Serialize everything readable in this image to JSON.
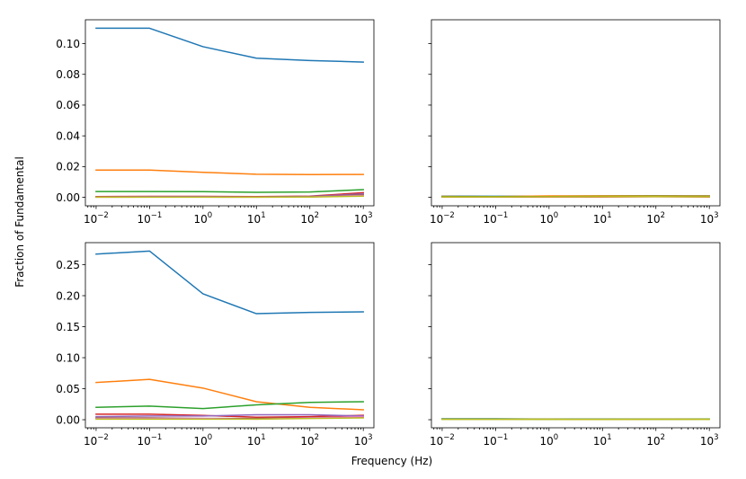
{
  "figure": {
    "xlabel": "Frequency (Hz)",
    "ylabel": "Fraction of Fundamental"
  },
  "chart_data": [
    {
      "type": "line",
      "panel": "top-left",
      "x": [
        0.01,
        0.1,
        1,
        10,
        100,
        1000
      ],
      "x_scale": "log",
      "xlim": [
        0.0063,
        1580
      ],
      "ylim": [
        -0.0055,
        0.1155
      ],
      "yticks": [
        0.0,
        0.02,
        0.04,
        0.06,
        0.08,
        0.1
      ],
      "ytick_labels": [
        "0.00",
        "0.02",
        "0.04",
        "0.06",
        "0.08",
        "0.10"
      ],
      "xtick_labels": [
        "10^-2",
        "10^-1",
        "10^0",
        "10^1",
        "10^2",
        "10^3"
      ],
      "show_yticklabels": true,
      "series": [
        {
          "color": "#1f77b4",
          "values": [
            0.11,
            0.11,
            0.098,
            0.0905,
            0.089,
            0.088
          ]
        },
        {
          "color": "#ff7f0e",
          "values": [
            0.0177,
            0.0177,
            0.0163,
            0.015,
            0.0148,
            0.0149
          ]
        },
        {
          "color": "#2ca02c",
          "values": [
            0.0038,
            0.0038,
            0.0037,
            0.0033,
            0.0035,
            0.005
          ]
        },
        {
          "color": "#d62728",
          "values": [
            0.0005,
            0.0006,
            0.0006,
            0.0005,
            0.0008,
            0.003
          ]
        },
        {
          "color": "#9467bd",
          "values": [
            0.0003,
            0.0004,
            0.0004,
            0.0003,
            0.0006,
            0.0022
          ]
        },
        {
          "color": "#8c564b",
          "values": [
            0.0002,
            0.0002,
            0.0002,
            0.0002,
            0.0004,
            0.0016
          ]
        },
        {
          "color": "#e377c2",
          "values": [
            0.0001,
            0.0002,
            0.0002,
            0.0001,
            0.0003,
            0.0012
          ]
        },
        {
          "color": "#bcbd22",
          "values": [
            0.0001,
            0.0001,
            0.0001,
            0.0001,
            0.0002,
            0.0008
          ]
        }
      ]
    },
    {
      "type": "line",
      "panel": "top-right",
      "x": [
        0.01,
        0.1,
        1,
        10,
        100,
        1000
      ],
      "x_scale": "log",
      "xlim": [
        0.0063,
        1580
      ],
      "ylim": [
        -0.0055,
        0.1155
      ],
      "yticks": [
        0.0,
        0.02,
        0.04,
        0.06,
        0.08,
        0.1
      ],
      "xtick_labels": [
        "10^-2",
        "10^-1",
        "10^0",
        "10^1",
        "10^2",
        "10^3"
      ],
      "show_yticklabels": false,
      "series": [
        {
          "color": "#1f77b4",
          "values": [
            0.0008,
            0.0007,
            0.0008,
            0.0008,
            0.0009,
            0.0009
          ]
        },
        {
          "color": "#ff7f0e",
          "values": [
            0.0006,
            0.0005,
            0.0009,
            0.001,
            0.001,
            0.0009
          ]
        },
        {
          "color": "#2ca02c",
          "values": [
            0.0004,
            0.0004,
            0.0005,
            0.0006,
            0.0007,
            0.0006
          ]
        },
        {
          "color": "#d62728",
          "values": [
            0.0002,
            0.0002,
            0.0003,
            0.0003,
            0.0004,
            0.0003
          ]
        },
        {
          "color": "#bcbd22",
          "values": [
            0.0003,
            0.0003,
            0.0004,
            0.0005,
            0.0005,
            0.0004
          ]
        }
      ]
    },
    {
      "type": "line",
      "panel": "bottom-left",
      "x": [
        0.01,
        0.1,
        1,
        10,
        100,
        1000
      ],
      "x_scale": "log",
      "xlim": [
        0.0063,
        1580
      ],
      "ylim": [
        -0.013,
        0.2855
      ],
      "yticks": [
        0.0,
        0.05,
        0.1,
        0.15,
        0.2,
        0.25
      ],
      "ytick_labels": [
        "0.00",
        "0.05",
        "0.10",
        "0.15",
        "0.20",
        "0.25"
      ],
      "xtick_labels": [
        "10^-2",
        "10^-1",
        "10^0",
        "10^1",
        "10^2",
        "10^3"
      ],
      "show_yticklabels": true,
      "series": [
        {
          "color": "#1f77b4",
          "values": [
            0.267,
            0.272,
            0.203,
            0.171,
            0.173,
            0.174
          ]
        },
        {
          "color": "#ff7f0e",
          "values": [
            0.06,
            0.065,
            0.051,
            0.029,
            0.02,
            0.016
          ]
        },
        {
          "color": "#2ca02c",
          "values": [
            0.02,
            0.022,
            0.018,
            0.024,
            0.028,
            0.029
          ]
        },
        {
          "color": "#d62728",
          "values": [
            0.009,
            0.009,
            0.007,
            0.004,
            0.005,
            0.007
          ]
        },
        {
          "color": "#9467bd",
          "values": [
            0.005,
            0.006,
            0.006,
            0.008,
            0.008,
            0.006
          ]
        },
        {
          "color": "#8c564b",
          "values": [
            0.003,
            0.003,
            0.002,
            0.002,
            0.003,
            0.004
          ]
        },
        {
          "color": "#e377c2",
          "values": [
            0.002,
            0.002,
            0.002,
            0.001,
            0.003,
            0.005
          ]
        },
        {
          "color": "#bcbd22",
          "values": [
            0.001,
            0.001,
            0.001,
            0.001,
            0.002,
            0.003
          ]
        }
      ]
    },
    {
      "type": "line",
      "panel": "bottom-right",
      "x": [
        0.01,
        0.1,
        1,
        10,
        100,
        1000
      ],
      "x_scale": "log",
      "xlim": [
        0.0063,
        1580
      ],
      "ylim": [
        -0.013,
        0.2855
      ],
      "yticks": [
        0.0,
        0.05,
        0.1,
        0.15,
        0.2,
        0.25
      ],
      "xtick_labels": [
        "10^-2",
        "10^-1",
        "10^0",
        "10^1",
        "10^2",
        "10^3"
      ],
      "show_yticklabels": false,
      "series": [
        {
          "color": "#1f77b4",
          "values": [
            0.0015,
            0.0015,
            0.001,
            0.001,
            0.001,
            0.0012
          ]
        },
        {
          "color": "#ff7f0e",
          "values": [
            0.0012,
            0.0012,
            0.0009,
            0.0008,
            0.0009,
            0.0009
          ]
        },
        {
          "color": "#2ca02c",
          "values": [
            0.0009,
            0.001,
            0.0008,
            0.0007,
            0.0008,
            0.0009
          ]
        },
        {
          "color": "#bcbd22",
          "values": [
            0.0005,
            0.0006,
            0.0005,
            0.0004,
            0.0005,
            0.0005
          ]
        }
      ]
    }
  ]
}
